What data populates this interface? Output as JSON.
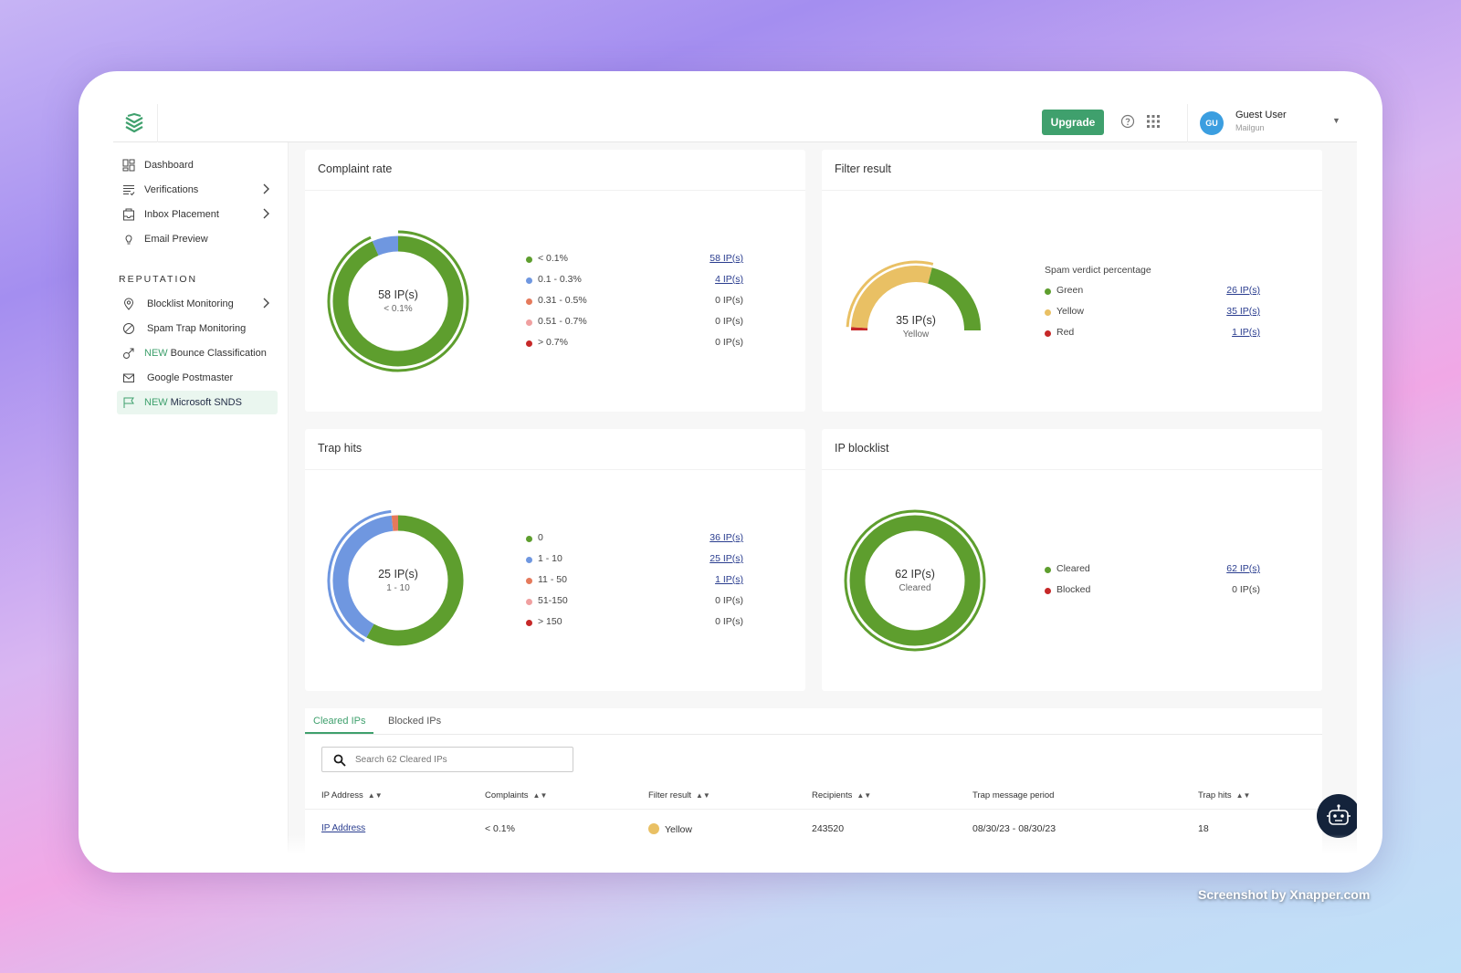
{
  "header": {
    "upgrade_label": "Upgrade",
    "user_initials": "GU",
    "user_name": "Guest User",
    "user_org": "Mailgun"
  },
  "sidebar": {
    "items": [
      {
        "label": "Dashboard"
      },
      {
        "label": "Verifications"
      },
      {
        "label": "Inbox Placement"
      },
      {
        "label": "Email Preview"
      }
    ],
    "section_label": "REPUTATION",
    "reputation_items": [
      {
        "badge": "",
        "label": "Blocklist Monitoring"
      },
      {
        "badge": "",
        "label": "Spam Trap Monitoring"
      },
      {
        "badge": "NEW",
        "label": "Bounce Classification"
      },
      {
        "badge": "",
        "label": "Google Postmaster"
      },
      {
        "badge": "NEW",
        "label": "Microsoft SNDS"
      }
    ]
  },
  "cards": {
    "complaint_rate": {
      "title": "Complaint rate",
      "center_value": "58 IP(s)",
      "center_label": "< 0.1%",
      "legend": [
        {
          "label": "< 0.1%",
          "value": "58 IP(s)",
          "color": "#5e9e2e"
        },
        {
          "label": "0.1 - 0.3%",
          "value": "4 IP(s)",
          "color": "#6f97e0"
        },
        {
          "label": "0.31 - 0.5%",
          "value": "0 IP(s)",
          "color": "#e57a5c"
        },
        {
          "label": "0.51 - 0.7%",
          "value": "0 IP(s)",
          "color": "#f0a0a0"
        },
        {
          "label": "> 0.7%",
          "value": "0 IP(s)",
          "color": "#c62828"
        }
      ]
    },
    "filter_result": {
      "title": "Filter result",
      "center_value": "35 IP(s)",
      "center_label": "Yellow",
      "legend_heading": "Spam verdict percentage",
      "legend": [
        {
          "label": "Green",
          "value": "26 IP(s)",
          "color": "#5e9e2e"
        },
        {
          "label": "Yellow",
          "value": "35 IP(s)",
          "color": "#e9c064"
        },
        {
          "label": "Red",
          "value": "1 IP(s)",
          "color": "#c62828"
        }
      ]
    },
    "trap_hits": {
      "title": "Trap hits",
      "center_value": "25 IP(s)",
      "center_label": "1 - 10",
      "legend": [
        {
          "label": "0",
          "value": "36 IP(s)",
          "color": "#5e9e2e"
        },
        {
          "label": "1 - 10",
          "value": "25 IP(s)",
          "color": "#6f97e0"
        },
        {
          "label": "11 - 50",
          "value": "1 IP(s)",
          "color": "#e57a5c"
        },
        {
          "label": "51-150",
          "value": "0 IP(s)",
          "color": "#f0a0a0"
        },
        {
          "label": "> 150",
          "value": "0 IP(s)",
          "color": "#c62828"
        }
      ]
    },
    "ip_blocklist": {
      "title": "IP blocklist",
      "center_value": "62 IP(s)",
      "center_label": "Cleared",
      "legend": [
        {
          "label": "Cleared",
          "value": "62 IP(s)",
          "color": "#5e9e2e"
        },
        {
          "label": "Blocked",
          "value": "0 IP(s)",
          "color": "#c62828"
        }
      ]
    }
  },
  "chart_data": [
    {
      "type": "pie",
      "title": "Complaint rate",
      "categories": [
        "< 0.1%",
        "0.1 - 0.3%",
        "0.31 - 0.5%",
        "0.51 - 0.7%",
        "> 0.7%"
      ],
      "values": [
        58,
        4,
        0,
        0,
        0
      ]
    },
    {
      "type": "pie",
      "title": "Filter result",
      "categories": [
        "Green",
        "Yellow",
        "Red"
      ],
      "values": [
        26,
        35,
        1
      ]
    },
    {
      "type": "pie",
      "title": "Trap hits",
      "categories": [
        "0",
        "1 - 10",
        "11 - 50",
        "51-150",
        "> 150"
      ],
      "values": [
        36,
        25,
        1,
        0,
        0
      ]
    },
    {
      "type": "pie",
      "title": "IP blocklist",
      "categories": [
        "Cleared",
        "Blocked"
      ],
      "values": [
        62,
        0
      ]
    }
  ],
  "table": {
    "tabs": [
      {
        "label": "Cleared IPs",
        "active": true
      },
      {
        "label": "Blocked IPs",
        "active": false
      }
    ],
    "search_placeholder": "Search 62 Cleared IPs",
    "columns": [
      "IP Address",
      "Complaints",
      "Filter result",
      "Recipients",
      "Trap message period",
      "Trap hits"
    ],
    "rows": [
      {
        "ip": "IP Address",
        "complaints": "< 0.1%",
        "filter_result": "Yellow",
        "recipients": "243520",
        "period": "08/30/23 - 08/30/23",
        "trap_hits": "18"
      }
    ]
  },
  "watermark": "Screenshot by Xnapper.com",
  "colors": {
    "accent": "#3fa06d",
    "green": "#5e9e2e",
    "blue": "#6f97e0",
    "yellow": "#e9c064",
    "red": "#c62828"
  }
}
